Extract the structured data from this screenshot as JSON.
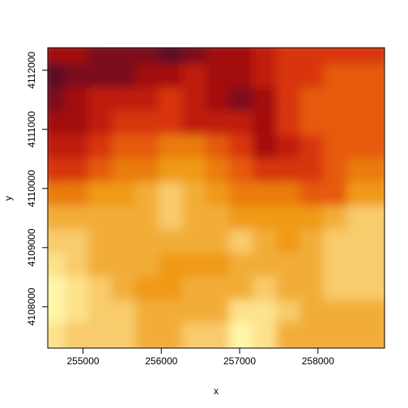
{
  "chart_data": {
    "type": "heatmap",
    "title": "",
    "xlabel": "x",
    "ylabel": "y",
    "xlim": [
      254550,
      258850
    ],
    "ylim": [
      4107300,
      4112380
    ],
    "x_ticks": [
      255000,
      256000,
      257000,
      258000
    ],
    "x_tick_labels": [
      "255000",
      "256000",
      "257000",
      "258000"
    ],
    "y_ticks": [
      4108000,
      4109000,
      4110000,
      4111000,
      4112000
    ],
    "y_tick_labels": [
      "4108000",
      "4109000",
      "4110000",
      "4111000",
      "4112000"
    ],
    "palette": [
      "#FFF5A8",
      "#FDE28C",
      "#F8CB6C",
      "#F2AD37",
      "#F09A17",
      "#EA7B10",
      "#E55A0E",
      "#D8360B",
      "#C01E0A",
      "#A3100B",
      "#7C0E1A",
      "#5C0F27"
    ],
    "raster_grid": {
      "x": [
        254700,
        255000,
        255300,
        255600,
        255900,
        256200,
        256500,
        256800,
        257100,
        257400,
        257700,
        258000,
        258300,
        258600
      ],
      "y": [
        4112200,
        4111800,
        4111400,
        4111000,
        4110600,
        4110200,
        4109800,
        4109400,
        4109000,
        4108600,
        4108200,
        4107800,
        4107450
      ],
      "class": [
        [
          9,
          9,
          10,
          10,
          10,
          11,
          10,
          9,
          9,
          8,
          7,
          7,
          7,
          7
        ],
        [
          11,
          10,
          10,
          10,
          9,
          9,
          8,
          9,
          9,
          8,
          7,
          7,
          6,
          6
        ],
        [
          10,
          9,
          8,
          8,
          8,
          7,
          8,
          9,
          10,
          9,
          7,
          6,
          6,
          6
        ],
        [
          9,
          9,
          8,
          7,
          7,
          7,
          8,
          8,
          8,
          9,
          7,
          6,
          6,
          6
        ],
        [
          8,
          8,
          7,
          6,
          6,
          5,
          5,
          6,
          7,
          9,
          8,
          7,
          6,
          6
        ],
        [
          7,
          7,
          6,
          5,
          5,
          4,
          4,
          5,
          6,
          7,
          7,
          7,
          6,
          5
        ],
        [
          5,
          5,
          4,
          4,
          3,
          2,
          3,
          4,
          5,
          5,
          5,
          6,
          6,
          4
        ],
        [
          3,
          3,
          3,
          3,
          3,
          2,
          3,
          3,
          4,
          4,
          4,
          4,
          3,
          2
        ],
        [
          2,
          2,
          3,
          3,
          3,
          3,
          3,
          3,
          2,
          3,
          4,
          3,
          2,
          2
        ],
        [
          1,
          2,
          3,
          3,
          3,
          4,
          4,
          4,
          3,
          3,
          3,
          3,
          2,
          2
        ],
        [
          0,
          1,
          2,
          3,
          4,
          4,
          3,
          3,
          3,
          2,
          3,
          3,
          2,
          2
        ],
        [
          0,
          1,
          2,
          2,
          3,
          3,
          3,
          3,
          1,
          1,
          2,
          3,
          3,
          3
        ],
        [
          1,
          2,
          2,
          2,
          3,
          3,
          2,
          2,
          0,
          1,
          3,
          3,
          3,
          3
        ]
      ]
    }
  }
}
